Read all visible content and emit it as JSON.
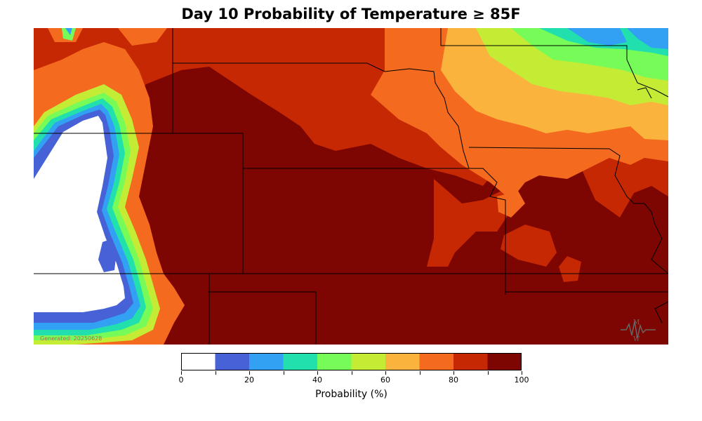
{
  "title": "Day 10 Probability of Temperature ≥ 85F",
  "generated_stamp": "Generated: 20250628",
  "colorbar": {
    "label": "Probability (%)",
    "ticks": [
      "0",
      "20",
      "40",
      "60",
      "80",
      "100"
    ],
    "bins": [
      {
        "range": "0-10",
        "color": "#ffffff"
      },
      {
        "range": "10-20",
        "color": "#4761d6"
      },
      {
        "range": "20-30",
        "color": "#33a1f3"
      },
      {
        "range": "30-40",
        "color": "#21e0ae"
      },
      {
        "range": "40-50",
        "color": "#76fb58"
      },
      {
        "range": "50-60",
        "color": "#c5ec35"
      },
      {
        "range": "60-70",
        "color": "#fab43d"
      },
      {
        "range": "70-80",
        "color": "#f46a1e"
      },
      {
        "range": "80-90",
        "color": "#c62804"
      },
      {
        "range": "90-100",
        "color": "#7d0502"
      }
    ]
  },
  "map": {
    "region": "Central Plains / Midwest",
    "state_borders_color": "#000000",
    "logo_icon": "wave-logo-icon"
  }
}
